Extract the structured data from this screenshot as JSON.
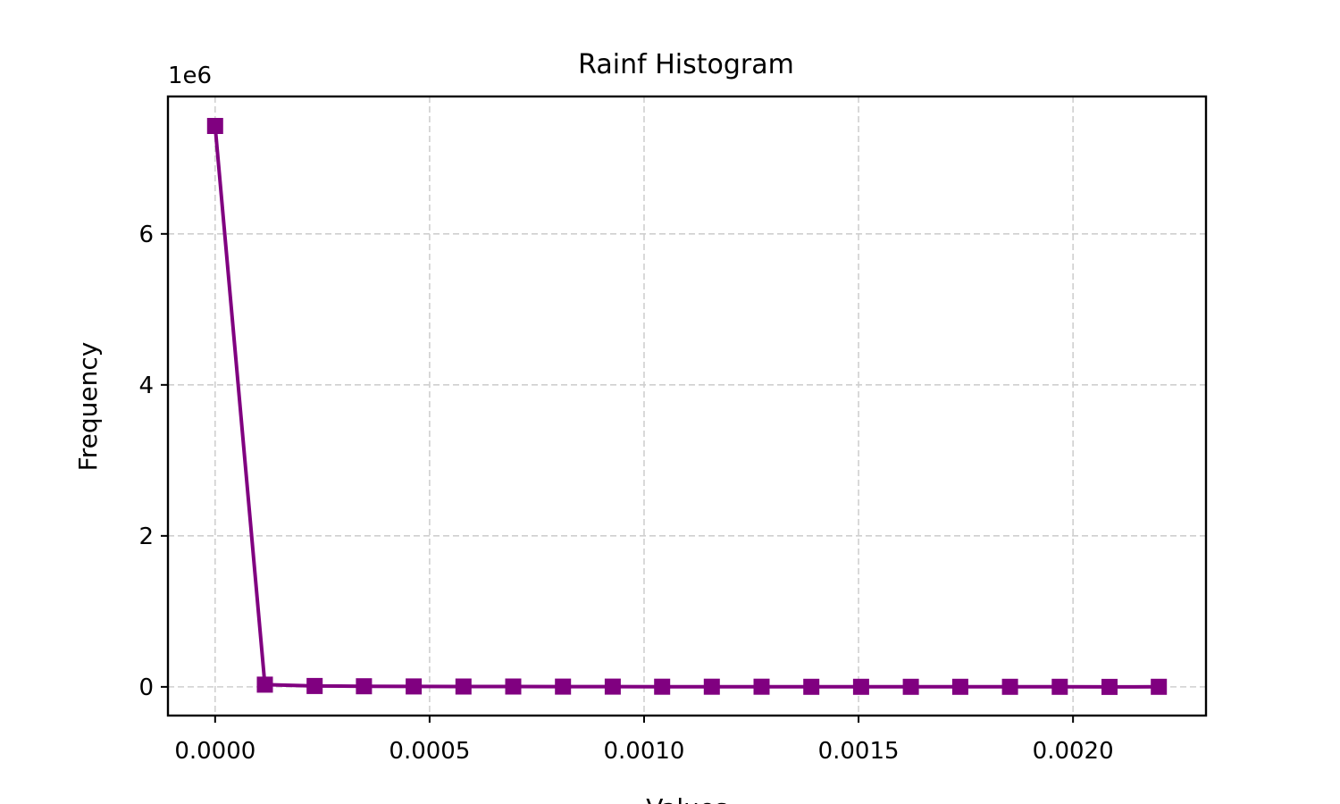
{
  "chart_data": {
    "type": "line",
    "title": "Rainf Histogram",
    "xlabel": "Values",
    "ylabel": "Frequency",
    "y_offset_label": "1e6",
    "xlim": [
      -0.00011,
      0.00231
    ],
    "ylim": [
      -0.38,
      7.82
    ],
    "y_scale": 1000000,
    "xticks": [
      0.0,
      0.0005,
      0.001,
      0.0015,
      0.002
    ],
    "xtick_labels": [
      "0.0000",
      "0.0005",
      "0.0010",
      "0.0015",
      "0.0020"
    ],
    "yticks": [
      0,
      2,
      4,
      6
    ],
    "ytick_labels": [
      "0",
      "2",
      "4",
      "6"
    ],
    "grid": true,
    "marker": "square",
    "color": "#800080",
    "x": [
      0.0,
      0.000116,
      0.000232,
      0.000347,
      0.000463,
      0.000579,
      0.000695,
      0.000811,
      0.000927,
      0.001042,
      0.001158,
      0.001274,
      0.00139,
      0.001506,
      0.001622,
      0.001737,
      0.001853,
      0.001969,
      0.002085,
      0.0022
    ],
    "values": [
      7430000,
      30000,
      12000,
      8000,
      6000,
      5000,
      4000,
      3500,
      3000,
      2500,
      2000,
      1800,
      1500,
      1200,
      1000,
      900,
      800,
      700,
      0,
      500
    ]
  }
}
